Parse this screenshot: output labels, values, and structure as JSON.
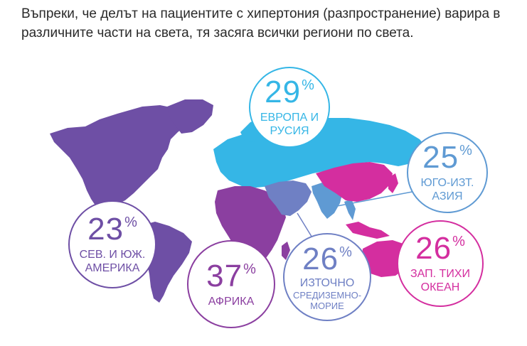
{
  "intro": "Въпреки, че делът на пациентите с хипертония (разпространение) варира в различните части на света, тя засяга всички региони по света.",
  "colors": {
    "americas": "#6e4fa5",
    "africa": "#8b3fa0",
    "europe": "#35b6e6",
    "sea": "#5f9ad3",
    "pacific": "#d42e9f",
    "emed": "#6f80c4"
  },
  "regions": {
    "europe": {
      "value": "29",
      "unit": "%",
      "label_line1": "ЕВРОПА И",
      "label_line2": "РУСИЯ"
    },
    "sea": {
      "value": "25",
      "unit": "%",
      "label_line1": "ЮГО-ИЗТ.",
      "label_line2": "АЗИЯ"
    },
    "americas": {
      "value": "23",
      "unit": "%",
      "label_line1": "СЕВ. И ЮЖ.",
      "label_line2": "АМЕРИКА"
    },
    "africa": {
      "value": "37",
      "unit": "%",
      "label_line1": "АФРИКА"
    },
    "emed": {
      "value": "26",
      "unit": "%",
      "label_line1": "ИЗТОЧНО",
      "label_line2": "СРЕДИЗЕМНО-",
      "label_line3": "МОРИЕ"
    },
    "pacific": {
      "value": "26",
      "unit": "%",
      "label_line1": "ЗАП. ТИХИ",
      "label_line2": "ОКЕАН"
    }
  }
}
